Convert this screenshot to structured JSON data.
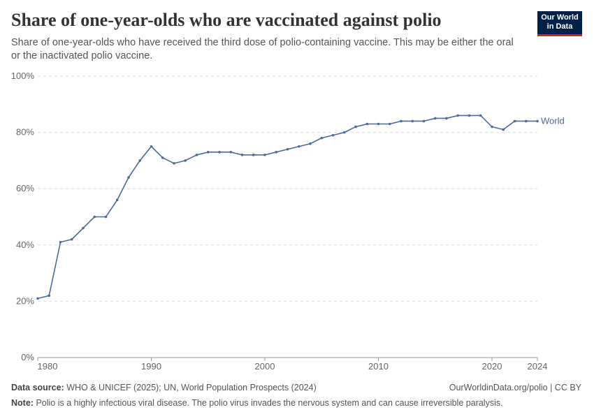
{
  "header": {
    "title": "Share of one-year-olds who are vaccinated against polio",
    "subtitle": "Share of one-year-olds who have received the third dose of polio-containing vaccine. This may be either the oral or the inactivated polio vaccine.",
    "logo": "Our World in Data"
  },
  "chart_data": {
    "type": "line",
    "title": "Share of one-year-olds who are vaccinated against polio",
    "ylim": [
      0,
      100
    ],
    "yticks": [
      0,
      20,
      40,
      60,
      80,
      100
    ],
    "ytick_labels": [
      "0%",
      "20%",
      "40%",
      "60%",
      "80%",
      "100%"
    ],
    "xticks": [
      1980,
      1990,
      2000,
      2010,
      2020,
      2024
    ],
    "xtick_labels": [
      "1980",
      "1990",
      "2000",
      "2010",
      "2020",
      "2024"
    ],
    "xlim": [
      1980,
      2024
    ],
    "grid": "horizontal dashed",
    "series": [
      {
        "name": "World",
        "color": "#4c6a9c",
        "x": [
          1980,
          1981,
          1982,
          1983,
          1984,
          1985,
          1986,
          1987,
          1988,
          1989,
          1990,
          1991,
          1992,
          1993,
          1994,
          1995,
          1996,
          1997,
          1998,
          1999,
          2000,
          2001,
          2002,
          2003,
          2004,
          2005,
          2006,
          2007,
          2008,
          2009,
          2010,
          2011,
          2012,
          2013,
          2014,
          2015,
          2016,
          2017,
          2018,
          2019,
          2020,
          2021,
          2022,
          2023,
          2024
        ],
        "values": [
          21,
          22,
          41,
          42,
          46,
          50,
          50,
          56,
          64,
          70,
          75,
          71,
          69,
          70,
          72,
          73,
          73,
          73,
          72,
          72,
          72,
          73,
          74,
          75,
          76,
          78,
          79,
          80,
          82,
          83,
          83,
          83,
          84,
          84,
          84,
          85,
          85,
          86,
          86,
          86,
          82,
          81,
          84,
          84,
          84
        ]
      }
    ]
  },
  "footer": {
    "source_label": "Data source:",
    "source": "WHO & UNICEF (2025); UN, World Population Prospects (2024)",
    "link": "OurWorldinData.org/polio | CC BY",
    "note_label": "Note:",
    "note": "Polio is a highly infectious viral disease. The polio virus invades the nervous system and can cause irreversible paralysis."
  }
}
